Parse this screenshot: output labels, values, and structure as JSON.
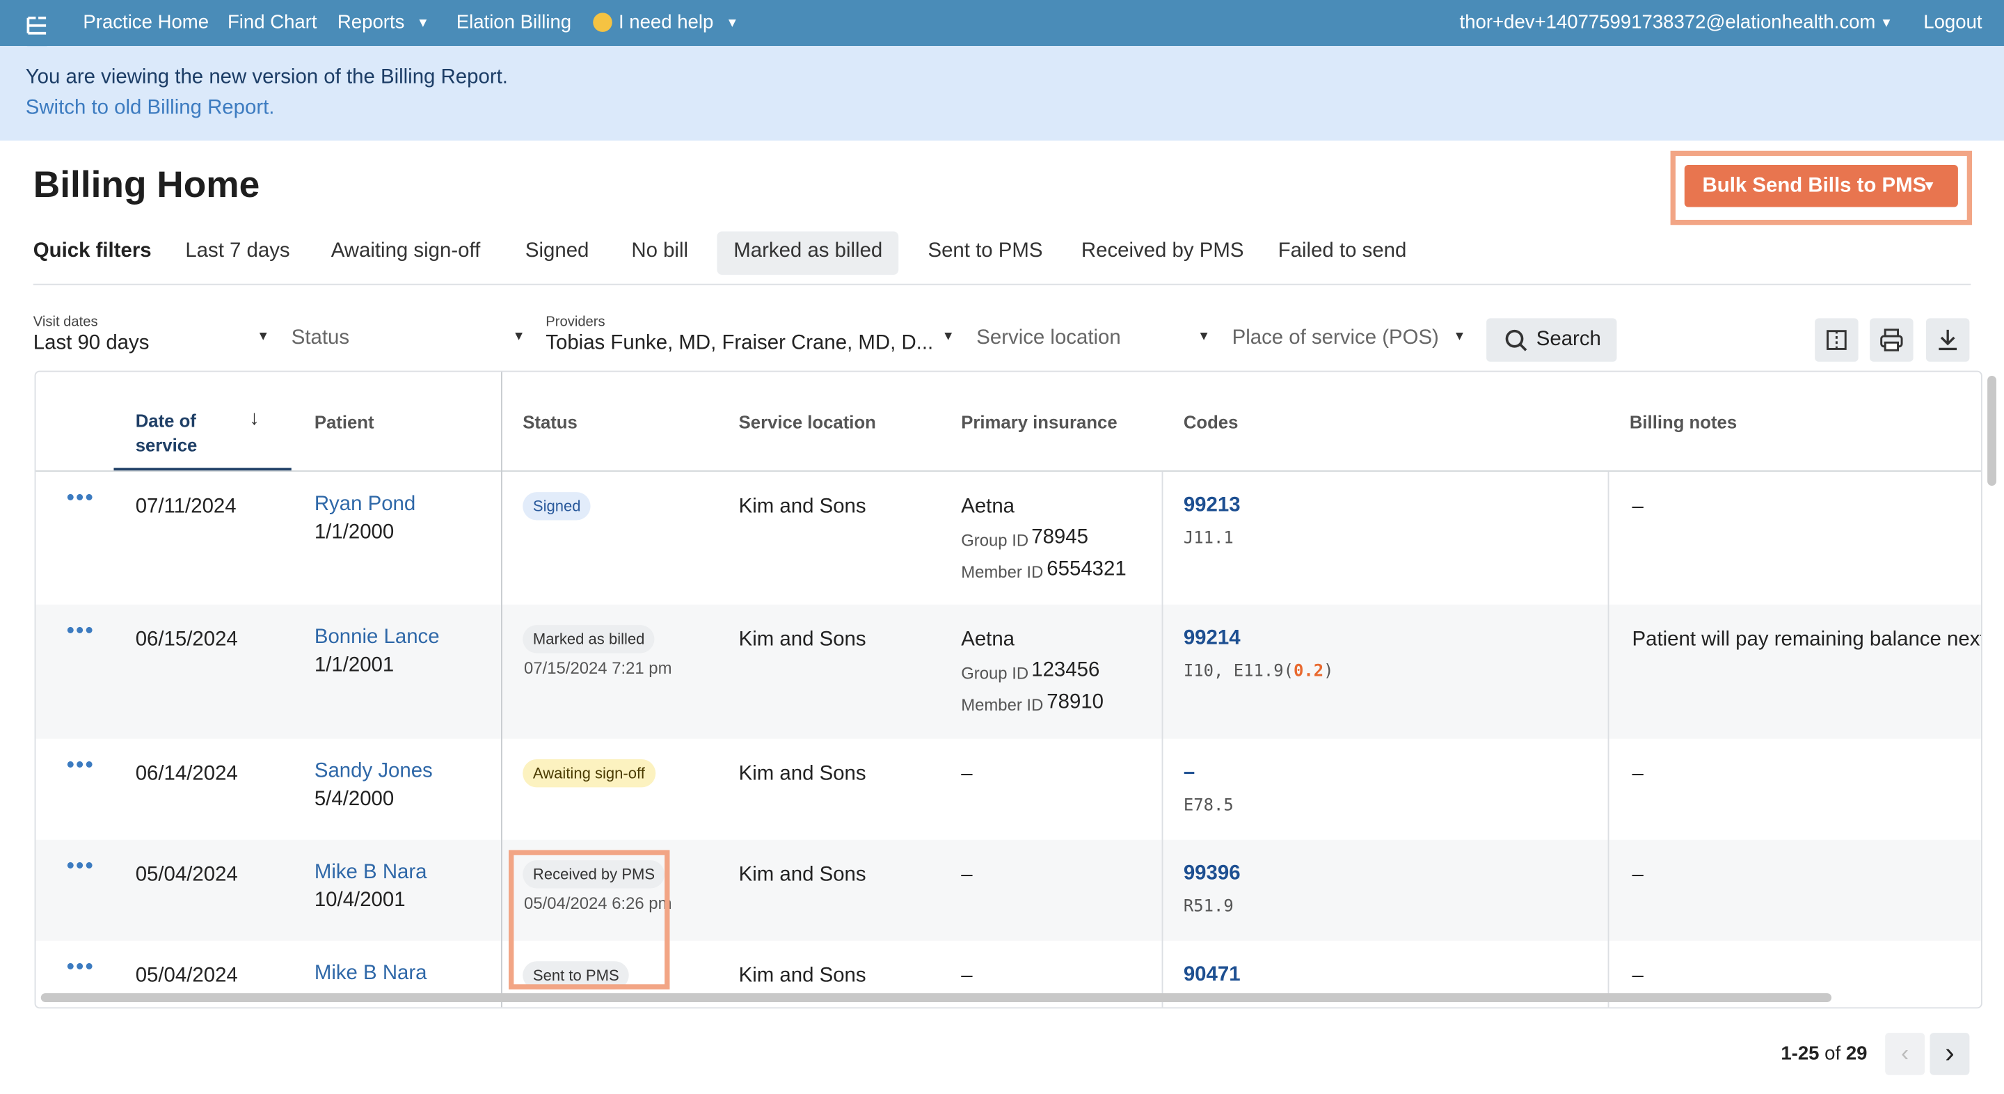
{
  "nav": {
    "items": [
      "Practice Home",
      "Find Chart",
      "Reports",
      "Elation Billing",
      "I need help"
    ],
    "user": "thor+dev+140775991738372@elationhealth.com",
    "logout": "Logout"
  },
  "banner": {
    "message": "You are viewing the new version of the Billing Report.",
    "link": "Switch to old Billing Report."
  },
  "header": {
    "title": "Billing Home",
    "bulk_button": "Bulk Send Bills to PMS"
  },
  "quick_filters": {
    "label": "Quick filters",
    "items": [
      {
        "label": "Last 7 days"
      },
      {
        "label": "Awaiting sign-off"
      },
      {
        "label": "Signed"
      },
      {
        "label": "No bill"
      },
      {
        "label": "Marked as billed",
        "selected": true
      },
      {
        "label": "Sent to PMS"
      },
      {
        "label": "Received by PMS"
      },
      {
        "label": "Failed to send"
      }
    ]
  },
  "filters": [
    {
      "label": "Visit dates",
      "value": "Last 90 days"
    },
    {
      "value": "Status",
      "placeholder": true
    },
    {
      "label": "Providers",
      "value": "Tobias Funke, MD, Fraiser Crane, MD, D..."
    },
    {
      "value": "Service location",
      "placeholder": true
    },
    {
      "value": "Place of service (POS)",
      "placeholder": true
    }
  ],
  "search": "Search",
  "table": {
    "columns": [
      "Date of service",
      "Patient",
      "Status",
      "Service location",
      "Primary insurance",
      "Codes",
      "Billing notes"
    ],
    "rows": [
      {
        "date": "07/11/2024",
        "patient": "Ryan Pond",
        "dob": "1/1/2000",
        "status": "Signed",
        "badge_color": "#e2ecfa",
        "badge_text_color": "#2a5a9c",
        "location": "Kim and Sons",
        "insurance": {
          "name": "Aetna",
          "group_label": "Group ID",
          "group": "78945",
          "member_label": "Member ID",
          "member": "6554321"
        },
        "code": "99213",
        "diagnoses": [
          {
            "text": "J11.1"
          }
        ],
        "notes": "–"
      },
      {
        "date": "06/15/2024",
        "patient": "Bonnie Lance",
        "dob": "1/1/2001",
        "status": "Marked as billed",
        "status_time": "07/15/2024 7:21 pm",
        "badge_color": "#eceef0",
        "badge_text_color": "#333333",
        "location": "Kim and Sons",
        "insurance": {
          "name": "Aetna",
          "group_label": "Group ID",
          "group": "123456",
          "member_label": "Member ID",
          "member": "78910"
        },
        "code": "99214",
        "diagnoses": [
          {
            "text": "I10, E11.9("
          },
          {
            "text": "0.2",
            "highlight": true
          },
          {
            "text": ")"
          }
        ],
        "notes": "Patient will pay remaining balance next"
      },
      {
        "date": "06/14/2024",
        "patient": "Sandy Jones",
        "dob": "5/4/2000",
        "status": "Awaiting sign-off",
        "badge_color": "#fcf2c0",
        "badge_text_color": "#4a3b00",
        "location": "Kim and Sons",
        "insurance": {
          "name": "–"
        },
        "code": "–",
        "diagnoses": [
          {
            "text": "E78.5"
          }
        ],
        "notes": "–"
      },
      {
        "date": "05/04/2024",
        "patient": "Mike B Nara",
        "dob": "10/4/2001",
        "status": "Received by PMS",
        "status_time": "05/04/2024 6:26 pm",
        "badge_color": "#eceef0",
        "badge_text_color": "#333333",
        "location": "Kim and Sons",
        "insurance": {
          "name": "–"
        },
        "code": "99396",
        "diagnoses": [
          {
            "text": "R51.9"
          }
        ],
        "notes": "–"
      },
      {
        "date": "05/04/2024",
        "patient": "Mike B Nara",
        "status": "Sent to PMS",
        "badge_color": "#eceef0",
        "badge_text_color": "#333333",
        "location": "Kim and Sons",
        "insurance": {
          "name": "–"
        },
        "code": "90471",
        "notes": "–"
      }
    ]
  },
  "pagination": {
    "range": "1-25",
    "of": "of",
    "total": "29"
  }
}
